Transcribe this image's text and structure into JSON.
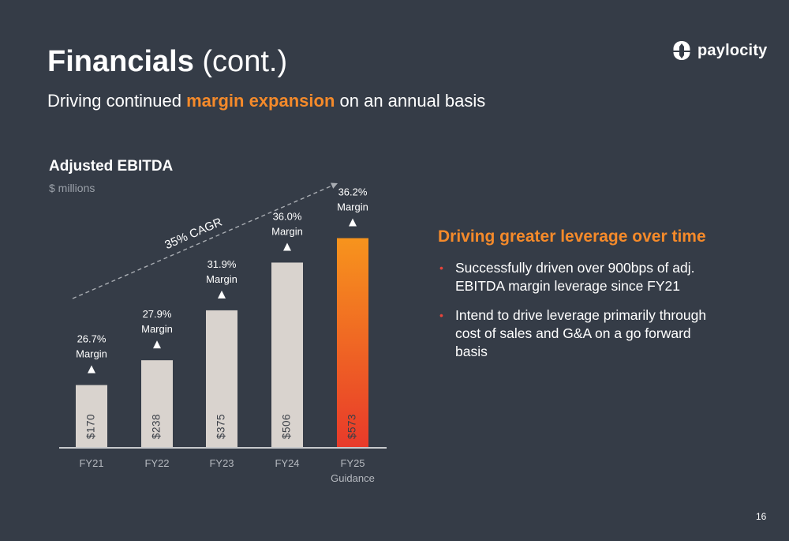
{
  "header": {
    "title_bold": "Financials",
    "title_rest": " (cont.)",
    "subtitle_pre": "Driving continued ",
    "subtitle_highlight": "margin expansion",
    "subtitle_post": " on an annual basis"
  },
  "logo": {
    "text": "paylocity",
    "icon": "paylocity-logo-icon"
  },
  "chart_data": {
    "type": "bar",
    "title": "Adjusted EBITDA",
    "unit": "$ millions",
    "categories": [
      "FY21",
      "FY22",
      "FY23",
      "FY24",
      "FY25"
    ],
    "category_sublabels": [
      "",
      "",
      "",
      "",
      "Guidance"
    ],
    "values": [
      170,
      238,
      375,
      506,
      573
    ],
    "value_labels": [
      "$170",
      "$238",
      "$375",
      "$506",
      "$573"
    ],
    "margins": [
      "26.7%",
      "27.9%",
      "31.9%",
      "36.0%",
      "36.2%"
    ],
    "margin_word": "Margin",
    "cagr_label": "35% CAGR",
    "ylim": [
      0,
      650
    ],
    "grid": false,
    "colors": {
      "bar": "#d9d3ce",
      "highlight_top": "#f7941d",
      "highlight_bottom": "#e83a2a",
      "label": "#ffffff",
      "axis": "#c7c9cc",
      "value_text": "#3a3f47"
    }
  },
  "panel": {
    "title": "Driving greater leverage over time",
    "bullets": [
      "Successfully driven over 900bps of adj. EBITDA margin leverage since FY21",
      "Intend to drive leverage primarily through cost of sales and G&A on a go forward basis"
    ]
  },
  "page_number": "16"
}
